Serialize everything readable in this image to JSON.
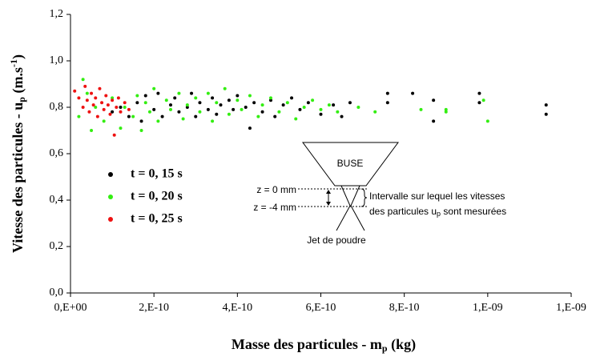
{
  "chart_data": {
    "type": "scatter",
    "x_label": {
      "text": "Masse des particules - m",
      "sub": "p",
      "unit": " (kg)"
    },
    "y_label": {
      "text": "Vitesse des particules - u",
      "sub": "p",
      "unit": " (m.s",
      "sup": "-1",
      "end": ")"
    },
    "xlim": [
      0,
      1.2e-09
    ],
    "ylim": [
      0,
      1.2
    ],
    "xticks": [
      {
        "value": 0,
        "label": "0,E+00"
      },
      {
        "value": 2e-10,
        "label": "2,E-10"
      },
      {
        "value": 4e-10,
        "label": "4,E-10"
      },
      {
        "value": 6e-10,
        "label": "6,E-10"
      },
      {
        "value": 8e-10,
        "label": "8,E-10"
      },
      {
        "value": 1e-09,
        "label": "1,E-09"
      },
      {
        "value": 1.2e-09,
        "label": "1,E-09"
      }
    ],
    "yticks": [
      {
        "value": 0,
        "label": "0,0"
      },
      {
        "value": 0.2,
        "label": "0,2"
      },
      {
        "value": 0.4,
        "label": "0,4"
      },
      {
        "value": 0.6,
        "label": "0,6"
      },
      {
        "value": 0.8,
        "label": "0,8"
      },
      {
        "value": 1.0,
        "label": "1,0"
      },
      {
        "value": 1.2,
        "label": "1,2"
      }
    ],
    "legend": "left",
    "series": [
      {
        "name": "t = 0, 15 s",
        "color": "#000000",
        "x": [
          1e-10,
          1.2e-10,
          1.4e-10,
          1.6e-10,
          1.7e-10,
          1.8e-10,
          2e-10,
          2.1e-10,
          2.2e-10,
          2.4e-10,
          2.5e-10,
          2.6e-10,
          2.8e-10,
          2.9e-10,
          3e-10,
          3.1e-10,
          3.3e-10,
          3.4e-10,
          3.5e-10,
          3.6e-10,
          3.8e-10,
          3.9e-10,
          4e-10,
          4.2e-10,
          4.3e-10,
          4.4e-10,
          4.6e-10,
          4.8e-10,
          4.9e-10,
          5.1e-10,
          5.3e-10,
          5.5e-10,
          5.7e-10,
          6e-10,
          6.3e-10,
          6.5e-10,
          6.7e-10,
          7.6e-10,
          7.6e-10,
          8.2e-10,
          8.7e-10,
          8.7e-10,
          9.8e-10,
          9.8e-10,
          1.14e-09,
          1.14e-09
        ],
        "values": [
          0.78,
          0.8,
          0.76,
          0.82,
          0.74,
          0.85,
          0.79,
          0.86,
          0.76,
          0.81,
          0.84,
          0.78,
          0.8,
          0.86,
          0.76,
          0.82,
          0.79,
          0.84,
          0.77,
          0.81,
          0.83,
          0.79,
          0.85,
          0.8,
          0.71,
          0.82,
          0.78,
          0.83,
          0.76,
          0.81,
          0.84,
          0.79,
          0.82,
          0.77,
          0.81,
          0.76,
          0.82,
          0.86,
          0.82,
          0.86,
          0.83,
          0.74,
          0.86,
          0.82,
          0.81,
          0.77
        ]
      },
      {
        "name": "t = 0, 20 s",
        "color": "#33ee11",
        "x": [
          2e-11,
          3e-11,
          4e-11,
          5e-11,
          6e-11,
          8e-11,
          1e-10,
          1.2e-10,
          1.3e-10,
          1.5e-10,
          1.6e-10,
          1.7e-10,
          1.8e-10,
          1.9e-10,
          2e-10,
          2.1e-10,
          2.3e-10,
          2.4e-10,
          2.6e-10,
          2.7e-10,
          2.8e-10,
          3e-10,
          3.1e-10,
          3.3e-10,
          3.4e-10,
          3.5e-10,
          3.7e-10,
          3.8e-10,
          4e-10,
          4.1e-10,
          4.3e-10,
          4.5e-10,
          4.6e-10,
          4.8e-10,
          5e-10,
          5.2e-10,
          5.4e-10,
          5.6e-10,
          5.8e-10,
          6e-10,
          6.2e-10,
          6.4e-10,
          6.9e-10,
          7.3e-10,
          8.4e-10,
          9e-10,
          9e-10,
          9.9e-10,
          1e-09
        ],
        "values": [
          0.76,
          0.92,
          0.86,
          0.7,
          0.8,
          0.74,
          0.84,
          0.71,
          0.8,
          0.76,
          0.85,
          0.7,
          0.82,
          0.78,
          0.88,
          0.74,
          0.83,
          0.79,
          0.86,
          0.75,
          0.81,
          0.84,
          0.78,
          0.86,
          0.74,
          0.82,
          0.88,
          0.77,
          0.83,
          0.79,
          0.85,
          0.76,
          0.81,
          0.84,
          0.78,
          0.82,
          0.75,
          0.8,
          0.83,
          0.79,
          0.81,
          0.78,
          0.8,
          0.78,
          0.79,
          0.79,
          0.78,
          0.83,
          0.74
        ]
      },
      {
        "name": "t = 0, 25 s",
        "color": "#ee1111",
        "x": [
          1e-11,
          2e-11,
          3e-11,
          3.5e-11,
          4e-11,
          4.5e-11,
          5e-11,
          5.5e-11,
          6e-11,
          6.5e-11,
          7e-11,
          7.5e-11,
          8e-11,
          8.5e-11,
          9e-11,
          9.5e-11,
          1e-10,
          1.05e-10,
          1.1e-10,
          1.15e-10,
          1.2e-10,
          1.3e-10,
          1.4e-10
        ],
        "values": [
          0.87,
          0.84,
          0.8,
          0.89,
          0.83,
          0.78,
          0.86,
          0.81,
          0.84,
          0.76,
          0.88,
          0.82,
          0.79,
          0.85,
          0.81,
          0.77,
          0.83,
          0.68,
          0.8,
          0.84,
          0.78,
          0.82,
          0.79
        ]
      }
    ],
    "annotations": {
      "nozzle": "BUSE",
      "z0": "z = 0 mm",
      "z4": "z = -4 mm",
      "line1": "Intervalle sur lequel les vitesses",
      "line2a": "des particules u",
      "line2sub": "p",
      "line2b": " sont mesurées",
      "jet": "Jet de poudre"
    }
  }
}
